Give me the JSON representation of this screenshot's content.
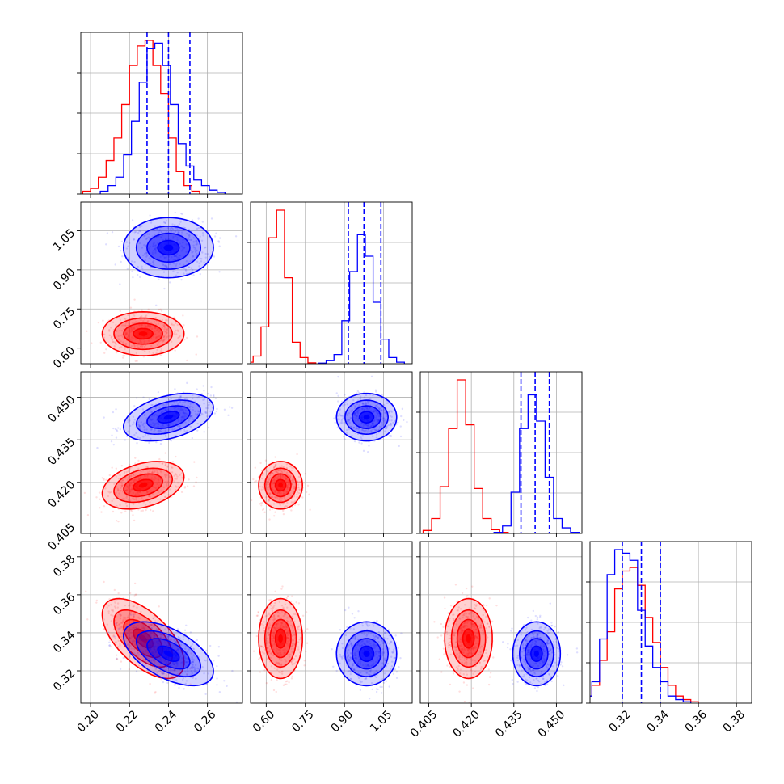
{
  "colors": {
    "red": "#ff0000",
    "blue": "#0000ff"
  },
  "chart_data": {
    "type": "corner",
    "parameters": [
      {
        "range": [
          0.195,
          0.278
        ],
        "ticks": [
          0.2,
          0.22,
          0.24,
          0.26
        ],
        "tick_labels": [
          "0.20",
          "0.22",
          "0.24",
          "0.26"
        ]
      },
      {
        "range": [
          0.54,
          1.16
        ],
        "ticks": [
          0.6,
          0.75,
          0.9,
          1.05
        ],
        "tick_labels": [
          "0.60",
          "0.75",
          "0.90",
          "1.05"
        ]
      },
      {
        "range": [
          0.402,
          0.459
        ],
        "ticks": [
          0.405,
          0.42,
          0.435,
          0.45
        ],
        "tick_labels": [
          "0.405",
          "0.420",
          "0.435",
          "0.450"
        ]
      },
      {
        "range": [
          0.303,
          0.388
        ],
        "ticks": [
          0.32,
          0.34,
          0.36,
          0.38
        ],
        "tick_labels": [
          "0.32",
          "0.34",
          "0.36",
          "0.38"
        ]
      }
    ],
    "series": [
      {
        "color": "red",
        "means": [
          0.227,
          0.655,
          0.419,
          0.337
        ],
        "sigmas": [
          0.01,
          0.04,
          0.004,
          0.01
        ],
        "correlations": [
          [
            0,
            1,
            0.0
          ],
          [
            0,
            2,
            0.35
          ],
          [
            0,
            3,
            -0.6
          ],
          [
            1,
            2,
            0.0
          ],
          [
            1,
            3,
            0.0
          ],
          [
            2,
            3,
            0.0
          ]
        ],
        "histograms": [
          {
            "start": 0.196,
            "step": 0.004,
            "counts": [
              0.5,
              1,
              3,
              6,
              10,
              16,
              23,
              26.5,
              27.5,
              23,
              18,
              10,
              4,
              1.5,
              0.5
            ]
          },
          {
            "start": 0.52,
            "step": 0.03,
            "counts": [
              0.5,
              2.5,
              12,
              41,
              50,
              28,
              7,
              2,
              0.3
            ]
          },
          {
            "start": 0.403,
            "step": 0.003,
            "counts": [
              0.8,
              4,
              12.5,
              28,
              41,
              29,
              12,
              4,
              1,
              0.3
            ]
          },
          {
            "start": 0.3,
            "step": 0.004,
            "counts": [
              1,
              2.5,
              6,
              10,
              16,
              18.5,
              19,
              16.5,
              12,
              8.5,
              5,
              2.5,
              1,
              0.5,
              0.2
            ]
          }
        ]
      },
      {
        "color": "blue",
        "means": [
          0.24,
          0.985,
          0.443,
          0.329
        ],
        "sigmas": [
          0.011,
          0.055,
          0.004,
          0.008
        ],
        "correlations": [
          [
            0,
            1,
            0.0
          ],
          [
            0,
            2,
            0.4
          ],
          [
            0,
            3,
            -0.55
          ],
          [
            1,
            2,
            0.0
          ],
          [
            1,
            3,
            0.0
          ],
          [
            2,
            3,
            0.0
          ]
        ],
        "quantiles": [
          [
            0.229,
            0.24,
            0.251
          ],
          [
            0.915,
            0.975,
            1.04
          ],
          [
            0.4375,
            0.4425,
            0.4475
          ],
          [
            0.32,
            0.33,
            0.34
          ]
        ],
        "histograms": [
          {
            "start": 0.205,
            "step": 0.004,
            "counts": [
              0.5,
              1.5,
              3,
              7,
              13,
              20,
              26,
              27,
              23,
              16,
              9,
              5,
              2.5,
              1.5,
              0.7,
              0.3
            ]
          },
          {
            "start": 0.8,
            "step": 0.03,
            "counts": [
              0.2,
              1,
              3,
              14,
              30,
              42,
              35,
              20,
              8,
              2,
              0.5
            ]
          },
          {
            "start": 0.428,
            "step": 0.003,
            "counts": [
              0.3,
              2,
              11,
              28,
              37,
              30,
              15,
              4,
              1.5,
              0.3
            ]
          },
          {
            "start": 0.3,
            "step": 0.004,
            "counts": [
              1,
              3,
              9,
              18,
              21.5,
              21,
              20,
              13,
              8,
              5,
              3,
              1,
              0.5,
              0.2
            ]
          }
        ]
      }
    ]
  }
}
